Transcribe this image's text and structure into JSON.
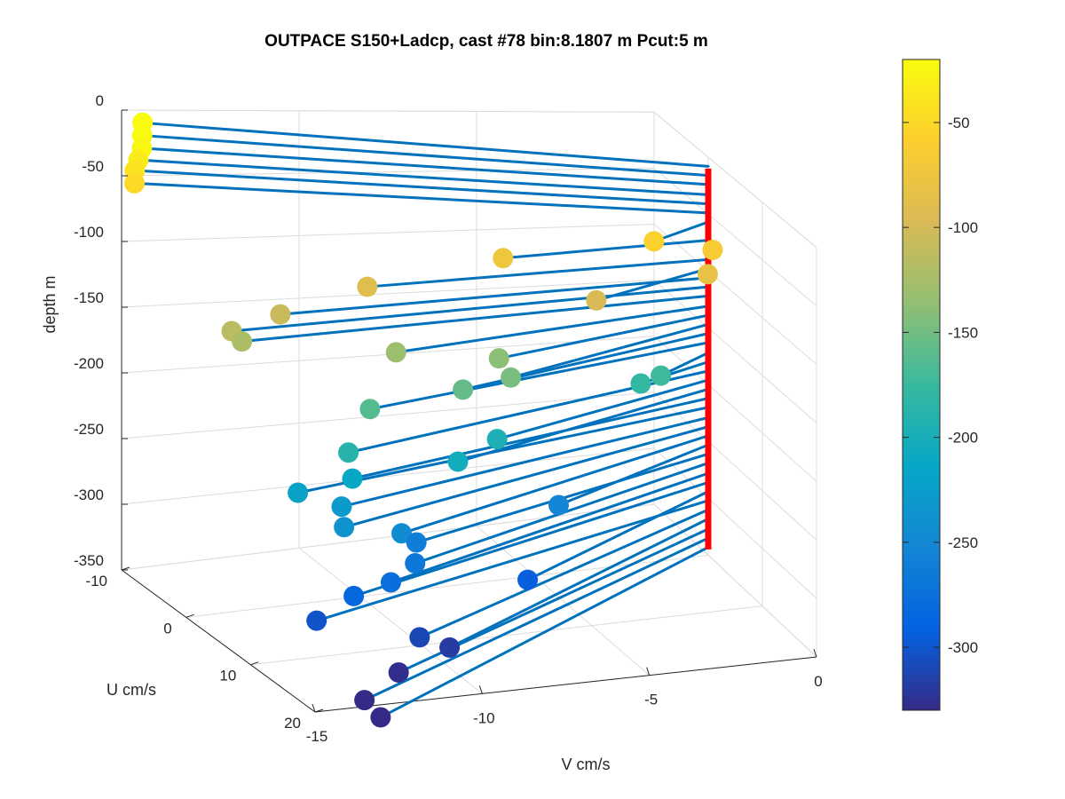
{
  "chart_data": {
    "type": "scatter",
    "title": "OUTPACE S150+Ladcp, cast #78 bin:8.1807 m  Pcut:5 m",
    "xlabel": "V cm/s",
    "ylabel": "U cm/s",
    "zlabel": "depth m",
    "xlim": [
      -15,
      0
    ],
    "ylim": [
      -10,
      20
    ],
    "zlim": [
      -350,
      0
    ],
    "x_ticks": [
      "-15",
      "-10",
      "-5",
      "0"
    ],
    "y_ticks": [
      "-10",
      "0",
      "10",
      "20"
    ],
    "z_ticks": [
      "0",
      "-50",
      "-100",
      "-150",
      "-200",
      "-250",
      "-300",
      "-350"
    ],
    "grid": true,
    "origin_line_color": "#FF0000",
    "stick_color": "#0072BD",
    "colorbar": {
      "ticks": [
        "-50",
        "-100",
        "-150",
        "-200",
        "-250",
        "-300"
      ],
      "range": [
        -330,
        -20
      ],
      "colormap": "parula"
    },
    "points": [
      {
        "depth": -8,
        "u": -9.5,
        "v": -14.5
      },
      {
        "depth": -16,
        "u": -9.0,
        "v": -14.6
      },
      {
        "depth": -24,
        "u": -8.5,
        "v": -14.7
      },
      {
        "depth": -33,
        "u": -8.5,
        "v": -14.8
      },
      {
        "depth": -41,
        "u": -8.5,
        "v": -14.9
      },
      {
        "depth": -49,
        "u": -8.0,
        "v": -15.0
      },
      {
        "depth": -57,
        "u": 4.0,
        "v": -2.2
      },
      {
        "depth": -65,
        "u": 4.0,
        "v": -0.5
      },
      {
        "depth": -73,
        "u": 3.0,
        "v": -6.4
      },
      {
        "depth": -82,
        "u": 5.0,
        "v": -0.8
      },
      {
        "depth": -90,
        "u": 4.0,
        "v": -10.5
      },
      {
        "depth": -98,
        "u": 6.0,
        "v": -4.2
      },
      {
        "depth": -106,
        "u": 5.0,
        "v": -13.2
      },
      {
        "depth": -114,
        "u": 6.0,
        "v": -14.8
      },
      {
        "depth": -122,
        "u": 6.0,
        "v": -14.5
      },
      {
        "depth": -131,
        "u": 7.0,
        "v": -10.2
      },
      {
        "depth": -139,
        "u": 7.0,
        "v": -7.2
      },
      {
        "depth": -147,
        "u": 9.0,
        "v": -7.2
      },
      {
        "depth": -155,
        "u": 9.0,
        "v": -8.6
      },
      {
        "depth": -163,
        "u": 10.0,
        "v": -11.5
      },
      {
        "depth": -172,
        "u": 4.0,
        "v": -2.0
      },
      {
        "depth": -180,
        "u": 3.5,
        "v": -2.5
      },
      {
        "depth": -188,
        "u": 12.0,
        "v": -12.5
      },
      {
        "depth": -196,
        "u": 9.0,
        "v": -7.6
      },
      {
        "depth": -204,
        "u": 11.0,
        "v": -9.1
      },
      {
        "depth": -212,
        "u": 11.0,
        "v": -12.2
      },
      {
        "depth": -220,
        "u": 11.0,
        "v": -13.8
      },
      {
        "depth": -229,
        "u": 12.0,
        "v": -12.7
      },
      {
        "depth": -237,
        "u": 14.0,
        "v": -13.0
      },
      {
        "depth": -245,
        "u": 14.0,
        "v": -11.3
      },
      {
        "depth": -253,
        "u": 9.0,
        "v": -5.8
      },
      {
        "depth": -261,
        "u": 12.0,
        "v": -10.5
      },
      {
        "depth": -269,
        "u": 14.0,
        "v": -10.9
      },
      {
        "depth": -278,
        "u": 15.0,
        "v": -11.8
      },
      {
        "depth": -286,
        "u": 15.0,
        "v": -12.9
      },
      {
        "depth": -294,
        "u": 13.0,
        "v": -7.4
      },
      {
        "depth": -302,
        "u": 15.0,
        "v": -14.0
      },
      {
        "depth": -310,
        "u": 18.0,
        "v": -11.5
      },
      {
        "depth": -318,
        "u": 18.5,
        "v": -10.7
      },
      {
        "depth": -327,
        "u": 20.0,
        "v": -12.5
      },
      {
        "depth": -335,
        "u": 22.5,
        "v": -14.0
      },
      {
        "depth": -343,
        "u": 24.0,
        "v": -13.8
      }
    ]
  }
}
